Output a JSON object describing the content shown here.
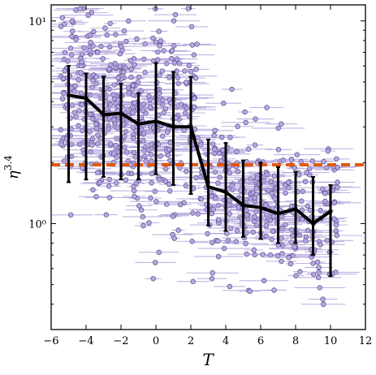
{
  "chart_data": {
    "type": "scatter",
    "xlabel": "T",
    "ylabel": "η",
    "ylabel_sup": "3.4",
    "xlim": [
      -6,
      12
    ],
    "ylim": [
      0.3,
      12
    ],
    "yscale": "log",
    "grid": false,
    "x_ticks": [
      -6,
      -4,
      -2,
      0,
      2,
      4,
      6,
      8,
      10,
      12
    ],
    "x_tick_labels": [
      "−6",
      "−4",
      "−2",
      "0",
      "2",
      "4",
      "6",
      "8",
      "10",
      "12"
    ],
    "y_ticks": [
      1,
      10
    ],
    "y_tick_labels": [
      "10⁰",
      "10¹"
    ],
    "reference_line": {
      "y": 1.95,
      "style": "dashed",
      "color": "#e05a0c"
    },
    "colors": {
      "points": "#b6a6e2",
      "point_edge": "#4a3d78",
      "xerr": "#a99bd8",
      "median": "#000000"
    },
    "median_trend": {
      "x": [
        -5,
        -4,
        -3,
        -2,
        -1,
        0,
        1,
        2,
        3,
        4,
        5,
        6,
        7,
        8,
        9,
        10
      ],
      "y": [
        4.3,
        4.15,
        3.45,
        3.5,
        3.1,
        3.2,
        3.0,
        3.0,
        1.52,
        1.43,
        1.23,
        1.2,
        1.12,
        1.18,
        1.0,
        1.15
      ],
      "err_low": [
        1.6,
        1.65,
        1.7,
        1.65,
        1.65,
        1.75,
        1.55,
        1.4,
        0.98,
        0.92,
        0.86,
        0.84,
        0.8,
        0.8,
        0.7,
        0.55
      ],
      "err_high": [
        6.0,
        5.5,
        5.3,
        4.9,
        4.4,
        6.2,
        5.6,
        5.3,
        2.6,
        2.5,
        2.05,
        2.0,
        1.9,
        1.8,
        1.7,
        1.55
      ]
    },
    "scatter_groups": [
      {
        "x": -5,
        "count": 55,
        "spread": 0.5
      },
      {
        "x": -4,
        "count": 65,
        "spread": 0.5
      },
      {
        "x": -3,
        "count": 65,
        "spread": 0.5
      },
      {
        "x": -2,
        "count": 75,
        "spread": 0.5
      },
      {
        "x": -1,
        "count": 75,
        "spread": 0.5
      },
      {
        "x": 0,
        "count": 65,
        "spread": 0.5
      },
      {
        "x": 1,
        "count": 55,
        "spread": 0.5
      },
      {
        "x": 2,
        "count": 45,
        "spread": 0.5
      },
      {
        "x": 3,
        "count": 40,
        "spread": 0.5
      },
      {
        "x": 4,
        "count": 45,
        "spread": 0.5
      },
      {
        "x": 5,
        "count": 50,
        "spread": 0.5
      },
      {
        "x": 6,
        "count": 50,
        "spread": 0.5
      },
      {
        "x": 7,
        "count": 45,
        "spread": 0.5
      },
      {
        "x": 8,
        "count": 40,
        "spread": 0.5
      },
      {
        "x": 9,
        "count": 35,
        "spread": 0.5
      },
      {
        "x": 10,
        "count": 35,
        "spread": 0.5
      }
    ]
  }
}
